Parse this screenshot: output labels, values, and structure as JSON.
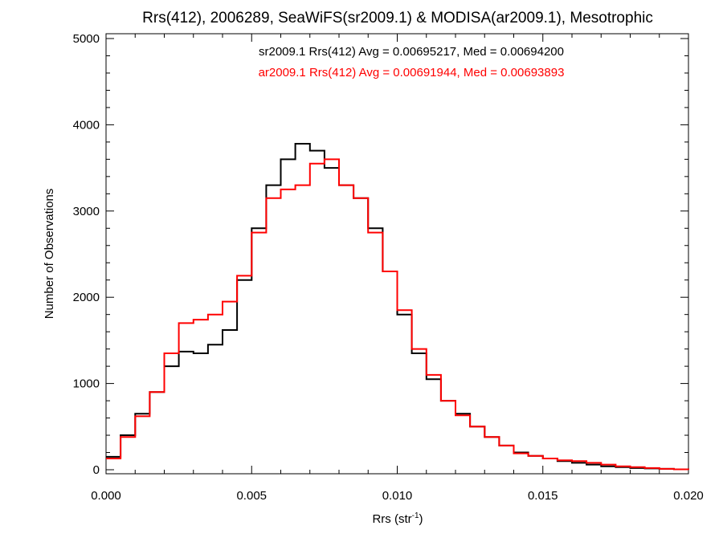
{
  "chart_data": {
    "type": "line",
    "step": true,
    "title": "Rrs(412), 2006289, SeaWiFS(sr2009.1) & MODISA(ar2009.1), Mesotrophic",
    "xlabel": "Rrs (str",
    "xlabel_sup": "-1",
    "xlabel_close": ")",
    "ylabel": "Number of Observations",
    "xlim": [
      0,
      0.02
    ],
    "ylim": [
      0,
      5000
    ],
    "x_ticks": [
      0.0,
      0.005,
      0.01,
      0.015,
      0.02
    ],
    "x_tick_labels": [
      "0.000",
      "0.005",
      "0.010",
      "0.015",
      "0.020"
    ],
    "y_ticks": [
      0,
      1000,
      2000,
      3000,
      4000,
      5000
    ],
    "y_tick_labels": [
      "0",
      "1000",
      "2000",
      "3000",
      "4000",
      "5000"
    ],
    "annotations": [
      {
        "text": "sr2009.1 Rrs(412) Avg = 0.00695217, Med = 0.00694200",
        "color": "#000000"
      },
      {
        "text": "ar2009.1 Rrs(412) Avg = 0.00691944, Med = 0.00693893",
        "color": "#ff0000"
      }
    ],
    "grid": false,
    "series": [
      {
        "color": "#000000",
        "x": [
          0.0,
          0.0005,
          0.001,
          0.0015,
          0.002,
          0.0025,
          0.003,
          0.0035,
          0.004,
          0.0045,
          0.005,
          0.0055,
          0.006,
          0.0065,
          0.007,
          0.0075,
          0.008,
          0.0085,
          0.009,
          0.0095,
          0.01,
          0.0105,
          0.011,
          0.0115,
          0.012,
          0.0125,
          0.013,
          0.0135,
          0.014,
          0.0145,
          0.015,
          0.0155,
          0.016,
          0.0165,
          0.017,
          0.0175,
          0.018,
          0.0185,
          0.019,
          0.0195,
          0.02
        ],
        "values": [
          150,
          400,
          650,
          900,
          1200,
          1370,
          1350,
          1450,
          1620,
          2200,
          2800,
          3300,
          3600,
          3780,
          3700,
          3500,
          3300,
          3150,
          2800,
          2300,
          1800,
          1350,
          1050,
          800,
          650,
          500,
          380,
          280,
          200,
          160,
          130,
          100,
          80,
          60,
          40,
          30,
          20,
          15,
          10,
          5,
          0
        ]
      },
      {
        "color": "#ff0000",
        "x": [
          0.0,
          0.0005,
          0.001,
          0.0015,
          0.002,
          0.0025,
          0.003,
          0.0035,
          0.004,
          0.0045,
          0.005,
          0.0055,
          0.006,
          0.0065,
          0.007,
          0.0075,
          0.008,
          0.0085,
          0.009,
          0.0095,
          0.01,
          0.0105,
          0.011,
          0.0115,
          0.012,
          0.0125,
          0.013,
          0.0135,
          0.014,
          0.0145,
          0.015,
          0.0155,
          0.016,
          0.0165,
          0.017,
          0.0175,
          0.018,
          0.0185,
          0.019,
          0.0195,
          0.02
        ],
        "values": [
          130,
          380,
          620,
          900,
          1350,
          1700,
          1740,
          1800,
          1950,
          2250,
          2750,
          3150,
          3250,
          3300,
          3550,
          3600,
          3300,
          3150,
          2750,
          2300,
          1850,
          1400,
          1100,
          800,
          630,
          500,
          380,
          280,
          190,
          160,
          130,
          110,
          100,
          80,
          60,
          40,
          30,
          20,
          10,
          5,
          0
        ]
      }
    ]
  }
}
